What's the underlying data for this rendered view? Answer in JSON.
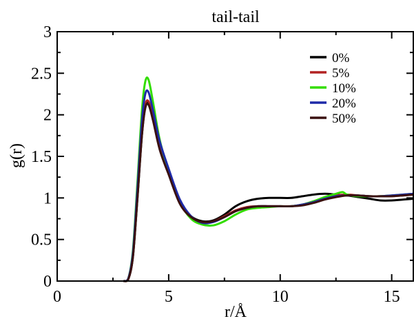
{
  "chart_data": {
    "type": "line",
    "title": "tail-tail",
    "xlabel": "r/Å",
    "ylabel": "g(r)",
    "xlim": [
      0,
      16
    ],
    "ylim": [
      0,
      3
    ],
    "xticks": [
      "0",
      "5",
      "10",
      "15"
    ],
    "yticks": [
      "0",
      "0.5",
      "1",
      "1.5",
      "2",
      "2.5",
      "3"
    ],
    "grid": false,
    "legend_position": "top-right",
    "series": [
      {
        "name": "0%",
        "color": "#000000",
        "x": [
          3.0,
          3.2,
          3.4,
          3.6,
          3.8,
          3.95,
          4.1,
          4.3,
          4.6,
          5.0,
          5.5,
          6.0,
          6.5,
          7.0,
          7.5,
          8.0,
          8.5,
          9.0,
          9.5,
          10.0,
          10.5,
          11.0,
          11.5,
          12.0,
          12.5,
          13.0,
          13.5,
          14.0,
          14.5,
          15.0,
          15.5,
          16.0
        ],
        "y": [
          0,
          0.03,
          0.3,
          1.0,
          1.75,
          2.1,
          2.14,
          1.95,
          1.6,
          1.3,
          0.95,
          0.78,
          0.72,
          0.73,
          0.8,
          0.9,
          0.96,
          0.99,
          1.0,
          1.0,
          1.0,
          1.02,
          1.04,
          1.05,
          1.04,
          1.03,
          1.01,
          0.99,
          0.97,
          0.97,
          0.98,
          0.99
        ]
      },
      {
        "name": "5%",
        "color": "#b22222",
        "x": [
          3.0,
          3.2,
          3.4,
          3.6,
          3.8,
          3.95,
          4.1,
          4.3,
          4.6,
          5.0,
          5.5,
          6.0,
          6.5,
          7.0,
          7.5,
          8.0,
          8.5,
          9.0,
          9.5,
          10.0,
          10.5,
          11.0,
          11.5,
          12.0,
          12.5,
          13.0,
          13.5,
          14.0,
          14.5,
          15.0,
          15.5,
          16.0
        ],
        "y": [
          0,
          0.03,
          0.32,
          1.05,
          1.8,
          2.12,
          2.16,
          1.97,
          1.6,
          1.3,
          0.94,
          0.77,
          0.71,
          0.72,
          0.78,
          0.85,
          0.89,
          0.9,
          0.9,
          0.9,
          0.9,
          0.92,
          0.96,
          1.0,
          1.03,
          1.04,
          1.03,
          1.02,
          1.02,
          1.02,
          1.03,
          1.04
        ]
      },
      {
        "name": "10%",
        "color": "#33dd00",
        "x": [
          3.0,
          3.2,
          3.4,
          3.6,
          3.8,
          3.95,
          4.1,
          4.3,
          4.6,
          5.0,
          5.5,
          6.0,
          6.5,
          7.0,
          7.5,
          8.0,
          8.5,
          9.0,
          9.5,
          10.0,
          10.5,
          11.0,
          11.5,
          12.0,
          12.5,
          12.8,
          13.0,
          13.5,
          14.0,
          14.5,
          15.0,
          15.5,
          16.0
        ],
        "y": [
          0,
          0.04,
          0.38,
          1.2,
          2.05,
          2.4,
          2.42,
          2.15,
          1.7,
          1.32,
          0.95,
          0.75,
          0.68,
          0.67,
          0.72,
          0.8,
          0.86,
          0.88,
          0.89,
          0.9,
          0.9,
          0.92,
          0.96,
          1.01,
          1.05,
          1.07,
          1.04,
          1.02,
          1.02,
          1.02,
          1.03,
          1.04,
          1.05
        ]
      },
      {
        "name": "20%",
        "color": "#1e2aa8",
        "x": [
          3.0,
          3.2,
          3.4,
          3.6,
          3.8,
          3.95,
          4.1,
          4.3,
          4.6,
          5.0,
          5.5,
          6.0,
          6.5,
          7.0,
          7.5,
          8.0,
          8.5,
          9.0,
          9.5,
          10.0,
          10.5,
          11.0,
          11.5,
          12.0,
          12.5,
          13.0,
          13.5,
          14.0,
          14.5,
          15.0,
          15.5,
          16.0
        ],
        "y": [
          0,
          0.04,
          0.35,
          1.12,
          1.92,
          2.25,
          2.27,
          2.05,
          1.68,
          1.35,
          0.98,
          0.78,
          0.7,
          0.71,
          0.77,
          0.84,
          0.88,
          0.9,
          0.9,
          0.9,
          0.9,
          0.92,
          0.95,
          0.99,
          1.02,
          1.03,
          1.03,
          1.02,
          1.02,
          1.03,
          1.04,
          1.05
        ]
      },
      {
        "name": "50%",
        "color": "#3a1010",
        "x": [
          3.0,
          3.2,
          3.4,
          3.6,
          3.8,
          3.95,
          4.1,
          4.3,
          4.6,
          5.0,
          5.5,
          6.0,
          6.5,
          7.0,
          7.5,
          8.0,
          8.5,
          9.0,
          9.5,
          10.0,
          10.5,
          11.0,
          11.5,
          12.0,
          12.5,
          13.0,
          13.5,
          14.0,
          14.5,
          15.0,
          15.5,
          16.0
        ],
        "y": [
          0,
          0.03,
          0.3,
          1.0,
          1.75,
          2.08,
          2.12,
          1.93,
          1.58,
          1.28,
          0.93,
          0.77,
          0.71,
          0.72,
          0.77,
          0.84,
          0.88,
          0.9,
          0.9,
          0.9,
          0.9,
          0.91,
          0.94,
          0.98,
          1.01,
          1.03,
          1.03,
          1.02,
          1.02,
          1.02,
          1.03,
          1.04
        ]
      }
    ]
  }
}
